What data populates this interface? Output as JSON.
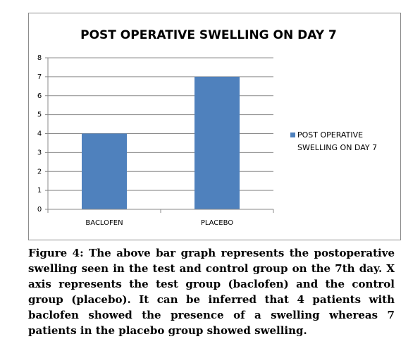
{
  "chart_data": {
    "type": "bar",
    "title": "POST OPERATIVE SWELLING ON DAY 7",
    "categories": [
      "BACLOFEN",
      "PLACEBO"
    ],
    "series": [
      {
        "name": "POST OPERATIVE SWELLING ON DAY 7",
        "color": "#4f81bd",
        "values": [
          4,
          7
        ]
      }
    ],
    "ylim": [
      0,
      8
    ],
    "yticks": [
      0,
      1,
      2,
      3,
      4,
      5,
      6,
      7,
      8
    ],
    "grid": true,
    "legend": "right"
  },
  "caption": "Figure 4: The above bar graph represents the postoperative swelling seen in the test and control group on the 7th day. X axis represents the test group (baclofen) and the control group (placebo). It can be inferred that 4 patients with baclofen showed the presence of a swelling whereas 7 patients in the placebo group showed swelling."
}
